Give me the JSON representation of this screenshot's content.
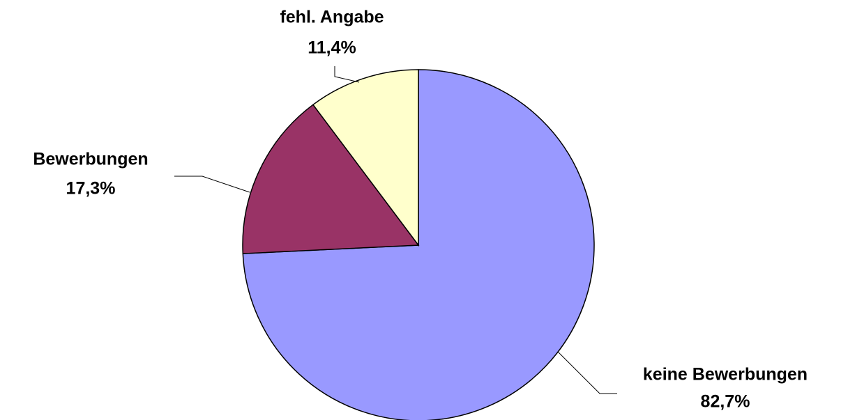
{
  "chart_data": {
    "type": "pie",
    "categories": [
      "keine Bewerbungen",
      "Bewerbungen",
      "fehl. Angabe"
    ],
    "values": [
      82.7,
      17.3,
      11.4
    ],
    "value_labels": [
      "82,7%",
      "17,3%",
      "11,4%"
    ],
    "colors": [
      "#9999ff",
      "#993366",
      "#ffffcc"
    ]
  }
}
